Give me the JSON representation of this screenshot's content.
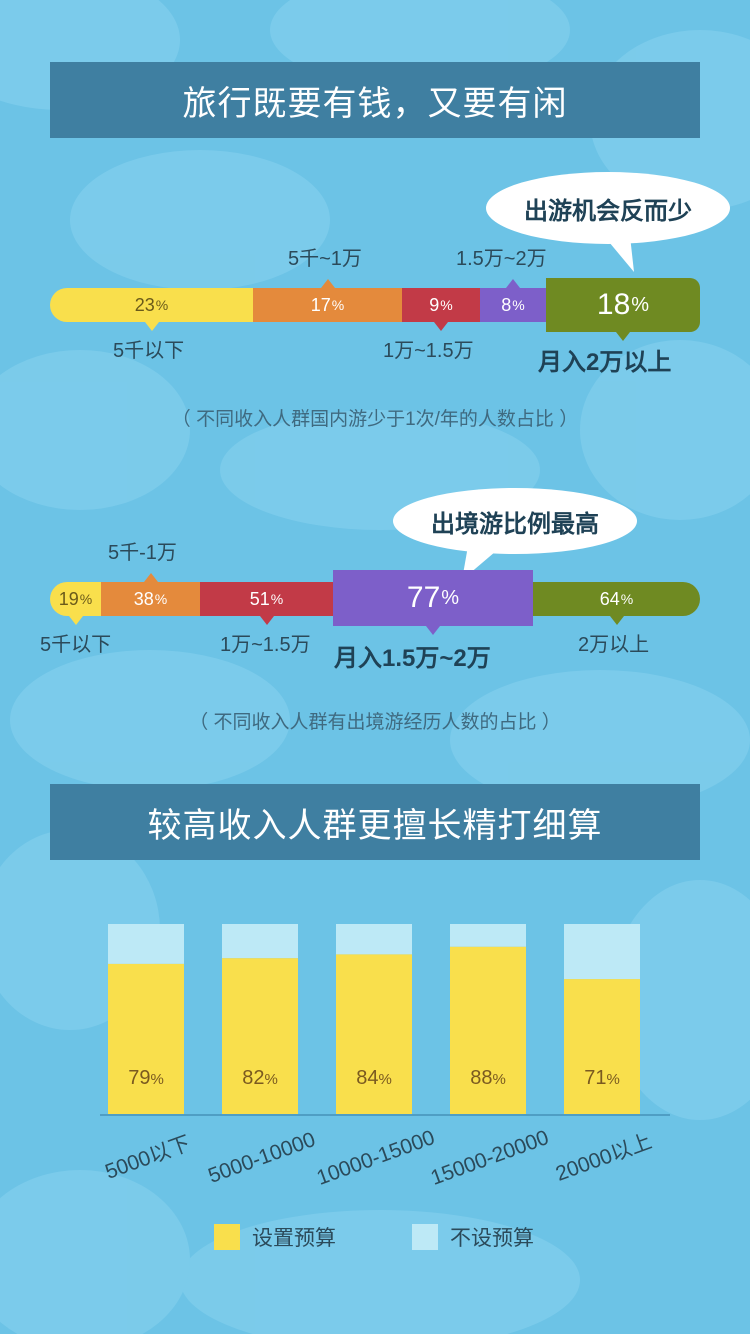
{
  "section1": {
    "title": "旅行既要有钱，又要有闲",
    "callout": "出游机会反而少",
    "highlight_label": "月入2万以上",
    "note": "（ 不同收入人群国内游少于1次/年的人数占比 ）",
    "segments": [
      {
        "label": "5千以下",
        "value": "23",
        "color": "#f9df4c",
        "text_color": "#6a5a1a"
      },
      {
        "label": "5千~1万",
        "value": "17",
        "color": "#e48a3c",
        "text_color": "#ffffff"
      },
      {
        "label": "1万~1.5万",
        "value": "9",
        "color": "#c23a47",
        "text_color": "#ffffff"
      },
      {
        "label": "1.5万~2万",
        "value": "8",
        "color": "#7d5fc9",
        "text_color": "#ffffff"
      },
      {
        "label": "月入2万以上",
        "value": "18",
        "color": "#6f8a22",
        "text_color": "#ffffff"
      }
    ]
  },
  "section2": {
    "callout": "出境游比例最高",
    "highlight_label": "月入1.5万~2万",
    "note": "（ 不同收入人群有出境游经历人数的占比 ）",
    "segments": [
      {
        "label": "5千以下",
        "value": "19",
        "color": "#f9df4c",
        "text_color": "#6a5a1a"
      },
      {
        "label": "5千-1万",
        "value": "38",
        "color": "#e48a3c",
        "text_color": "#ffffff"
      },
      {
        "label": "1万~1.5万",
        "value": "51",
        "color": "#c23a47",
        "text_color": "#ffffff"
      },
      {
        "label": "月入1.5万~2万",
        "value": "77",
        "color": "#7d5fc9",
        "text_color": "#ffffff"
      },
      {
        "label": "2万以上",
        "value": "64",
        "color": "#6f8a22",
        "text_color": "#ffffff"
      }
    ]
  },
  "section3": {
    "title": "较高收入人群更擅长精打细算"
  },
  "pct_sign": "%",
  "chart_data": {
    "type": "bar",
    "stacked": true,
    "categories": [
      "5000以下",
      "5000-10000",
      "10000-15000",
      "15000-20000",
      "20000以上"
    ],
    "series": [
      {
        "name": "设置预算",
        "values": [
          79,
          82,
          84,
          88,
          71
        ],
        "color": "#f9df4c"
      },
      {
        "name": "不设预算",
        "values": [
          21,
          18,
          16,
          12,
          29
        ],
        "color": "#bde9f6"
      }
    ],
    "ylim": [
      0,
      100
    ],
    "legend_position": "bottom",
    "grid": false
  }
}
